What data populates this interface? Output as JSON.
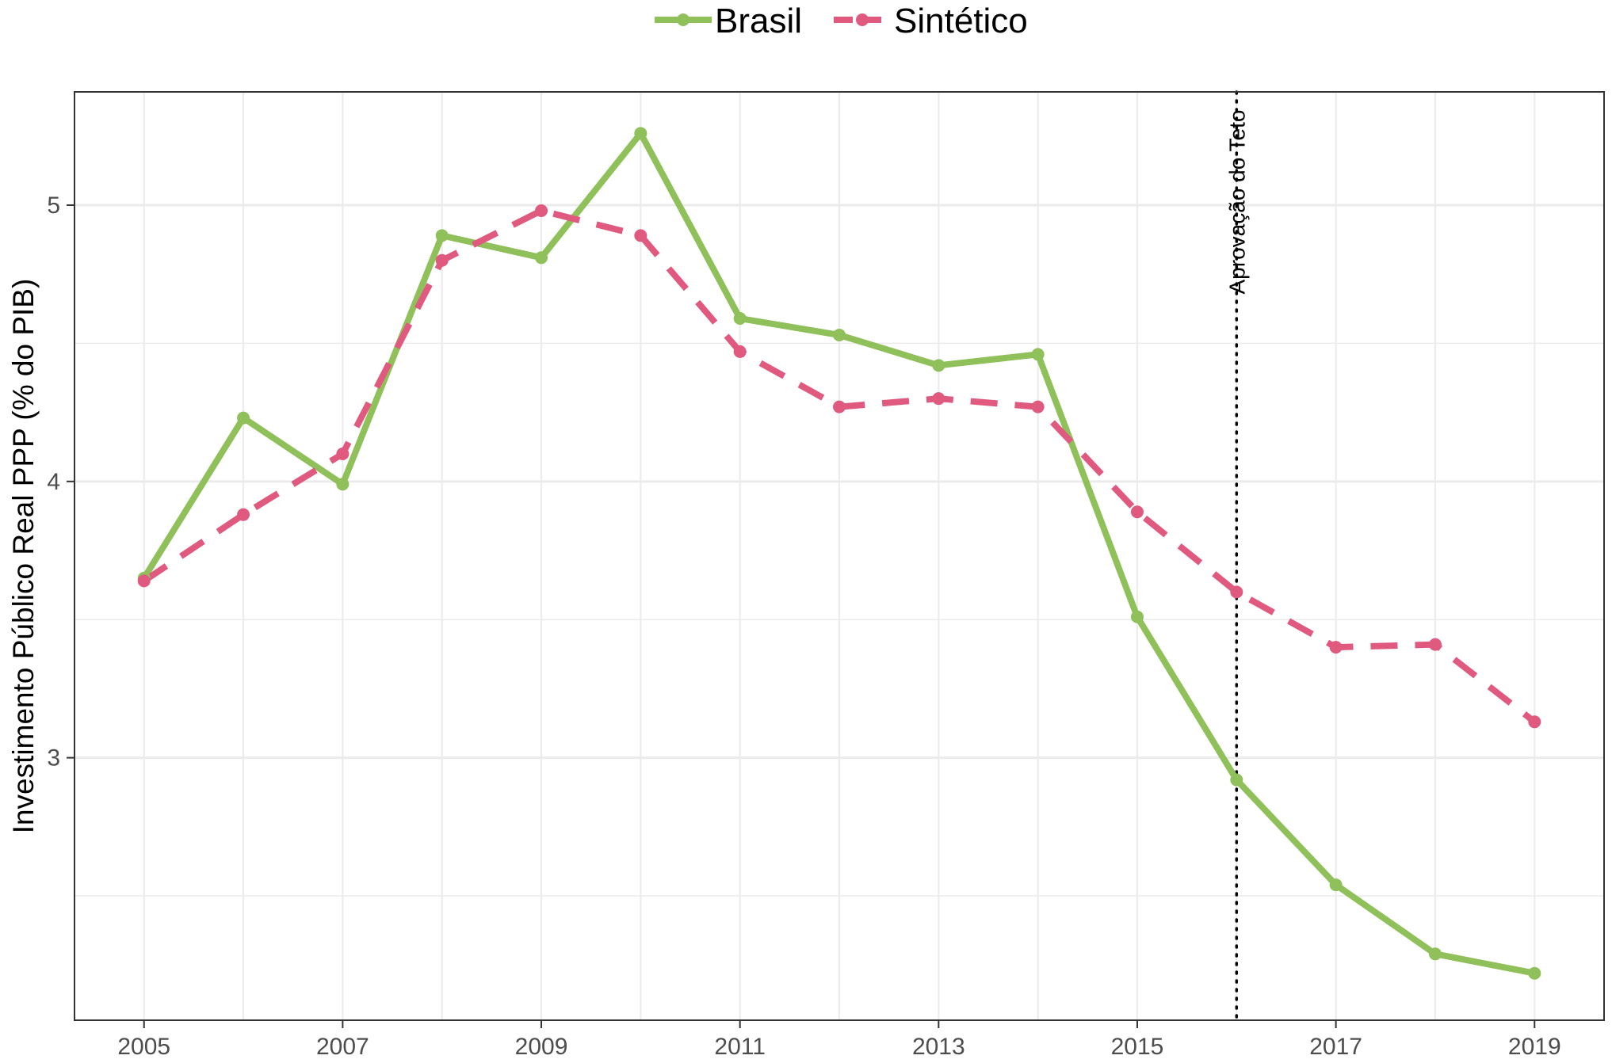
{
  "chart_data": {
    "type": "line",
    "title": "",
    "xlabel": "",
    "ylabel": "Investimento Público Real PPP (% do PIB)",
    "x": [
      2005,
      2006,
      2007,
      2008,
      2009,
      2010,
      2011,
      2012,
      2013,
      2014,
      2015,
      2016,
      2017,
      2018,
      2019
    ],
    "x_ticks": [
      2005,
      2007,
      2009,
      2011,
      2013,
      2015,
      2017,
      2019
    ],
    "x_tick_labels": [
      "2005",
      "2007",
      "2009",
      "2011",
      "2013",
      "2015",
      "2017",
      "2019"
    ],
    "y_ticks": [
      3,
      4,
      5
    ],
    "y_tick_labels": [
      "3",
      "4",
      "5"
    ],
    "xlim": [
      2004.3,
      2019.7
    ],
    "ylim": [
      2.05,
      5.41
    ],
    "grid": true,
    "legend_position": "top",
    "series": [
      {
        "name": "Brasil",
        "color": "#8fc05a",
        "dash": "solid",
        "values": [
          3.65,
          4.23,
          3.99,
          4.89,
          4.81,
          5.26,
          4.59,
          4.53,
          4.42,
          4.46,
          3.51,
          2.92,
          2.54,
          2.29,
          2.22
        ]
      },
      {
        "name": "Sintético",
        "color": "#e05a80",
        "dash": "dashed",
        "values": [
          3.64,
          3.88,
          4.1,
          4.8,
          4.98,
          4.89,
          4.47,
          4.27,
          4.3,
          4.27,
          3.89,
          3.6,
          3.4,
          3.41,
          3.13
        ]
      }
    ],
    "annotations": [
      {
        "type": "vline",
        "x": 2016,
        "label": "Aprovação do Teto",
        "style": "dotted"
      }
    ]
  }
}
